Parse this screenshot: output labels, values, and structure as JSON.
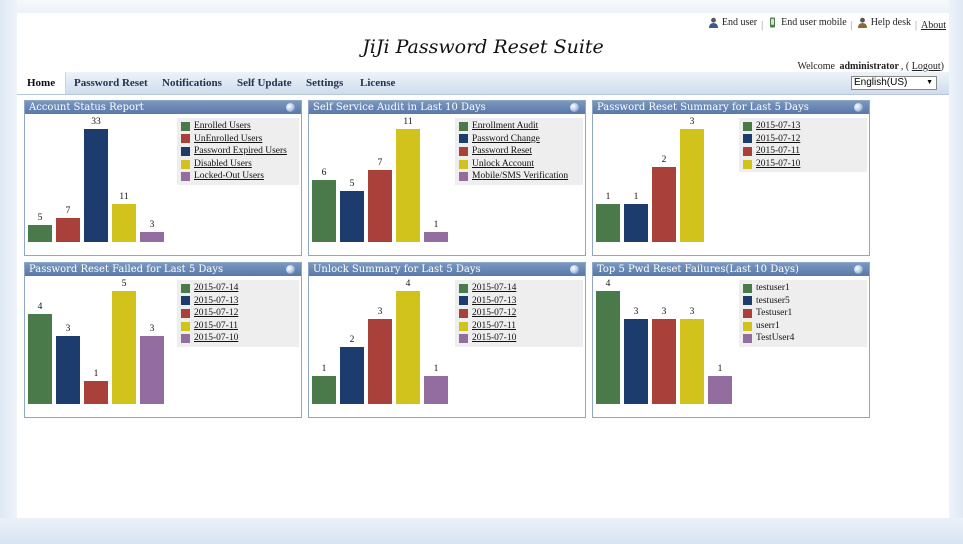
{
  "header": {
    "links": {
      "end_user": "End user",
      "end_user_mobile": "End user mobile",
      "help_desk": "Help desk",
      "about": "About"
    },
    "app_title": "JiJi Password Reset Suite",
    "welcome_prefix": "Welcome",
    "username": "administrator",
    "logout_label": "Logout"
  },
  "nav": {
    "items": [
      "Home",
      "Password Reset",
      "Notifications",
      "Self Update",
      "Settings",
      "License"
    ],
    "active": "Home",
    "language": "English(US)"
  },
  "colors": {
    "green": "#4a7a4a",
    "navy": "#1c3c6e",
    "red": "#a9403a",
    "yellow": "#d1c31c",
    "purple": "#946da0"
  },
  "panels": [
    {
      "title": "Account Status Report",
      "chart_data": {
        "type": "bar",
        "categories": [
          "Enrolled Users",
          "UnEnrolled Users",
          "Password Expired Users",
          "Disabled Users",
          "Locked-Out Users"
        ],
        "values": [
          5,
          7,
          33,
          11,
          3
        ],
        "colors": [
          "green",
          "red",
          "navy",
          "yellow",
          "purple"
        ]
      },
      "legend_links": true
    },
    {
      "title": "Self Service Audit in Last 10 Days",
      "chart_data": {
        "type": "bar",
        "categories": [
          "Enrollment Audit",
          "Password Change",
          "Password Reset",
          "Unlock Account",
          "Mobile/SMS Verification"
        ],
        "values": [
          6,
          5,
          7,
          11,
          1
        ],
        "colors": [
          "green",
          "navy",
          "red",
          "yellow",
          "purple"
        ]
      },
      "legend_links": true
    },
    {
      "title": "Password Reset Summary for Last 5 Days",
      "chart_data": {
        "type": "bar",
        "categories": [
          "2015-07-13",
          "2015-07-12",
          "2015-07-11",
          "2015-07-10"
        ],
        "values": [
          1,
          1,
          2,
          3
        ],
        "colors": [
          "green",
          "navy",
          "red",
          "yellow"
        ]
      },
      "legend_links": true
    },
    {
      "title": "Password Reset Failed for Last 5 Days",
      "chart_data": {
        "type": "bar",
        "categories": [
          "2015-07-14",
          "2015-07-13",
          "2015-07-12",
          "2015-07-11",
          "2015-07-10"
        ],
        "values": [
          4,
          3,
          1,
          5,
          3
        ],
        "colors": [
          "green",
          "navy",
          "red",
          "yellow",
          "purple"
        ]
      },
      "legend_links": true
    },
    {
      "title": "Unlock Summary for Last 5 Days",
      "chart_data": {
        "type": "bar",
        "categories": [
          "2015-07-14",
          "2015-07-13",
          "2015-07-12",
          "2015-07-11",
          "2015-07-10"
        ],
        "values": [
          1,
          2,
          3,
          4,
          1
        ],
        "colors": [
          "green",
          "navy",
          "red",
          "yellow",
          "purple"
        ]
      },
      "legend_links": true
    },
    {
      "title": "Top 5 Pwd Reset Failures(Last 10 Days)",
      "chart_data": {
        "type": "bar",
        "categories": [
          "testuser1",
          "testuser5",
          "Testuser1",
          "userr1",
          "TestUser4"
        ],
        "values": [
          4,
          3,
          3,
          3,
          1
        ],
        "colors": [
          "green",
          "navy",
          "red",
          "yellow",
          "purple"
        ]
      },
      "legend_links": false
    }
  ]
}
